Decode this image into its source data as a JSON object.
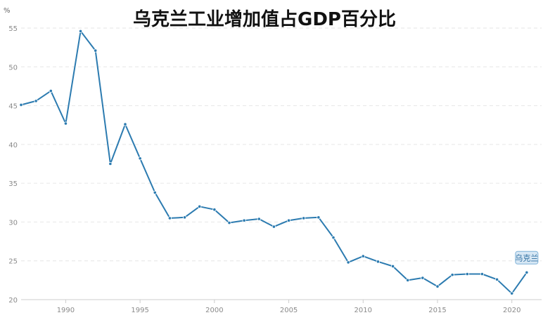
{
  "chart_data": {
    "type": "line",
    "title": "乌克兰工业增加值占GDP百分比",
    "ylabel": "%",
    "xlabel": "",
    "ylim": [
      20,
      55
    ],
    "xlim": [
      1987,
      2022
    ],
    "yticks": [
      20,
      25,
      30,
      35,
      40,
      45,
      50,
      55
    ],
    "xticks": [
      1990,
      1995,
      2000,
      2005,
      2010,
      2015,
      2020
    ],
    "grid": true,
    "series": [
      {
        "name": "乌克兰",
        "x": [
          1987,
          1988,
          1989,
          1990,
          1991,
          1992,
          1993,
          1994,
          1995,
          1996,
          1997,
          1998,
          1999,
          2000,
          2001,
          2002,
          2003,
          2004,
          2005,
          2006,
          2007,
          2008,
          2009,
          2010,
          2011,
          2012,
          2013,
          2014,
          2015,
          2016,
          2017,
          2018,
          2019,
          2020,
          2021
        ],
        "values": [
          45.1,
          45.6,
          46.9,
          42.7,
          54.6,
          52.1,
          37.5,
          42.6,
          38.2,
          33.8,
          30.5,
          30.6,
          32.0,
          31.6,
          29.9,
          30.2,
          30.4,
          29.4,
          30.2,
          30.5,
          30.6,
          28.0,
          24.8,
          25.6,
          24.9,
          24.3,
          22.5,
          22.8,
          21.7,
          23.2,
          23.3,
          23.3,
          22.6,
          20.8,
          23.5
        ]
      }
    ],
    "series_color": "#2c7bb0"
  }
}
